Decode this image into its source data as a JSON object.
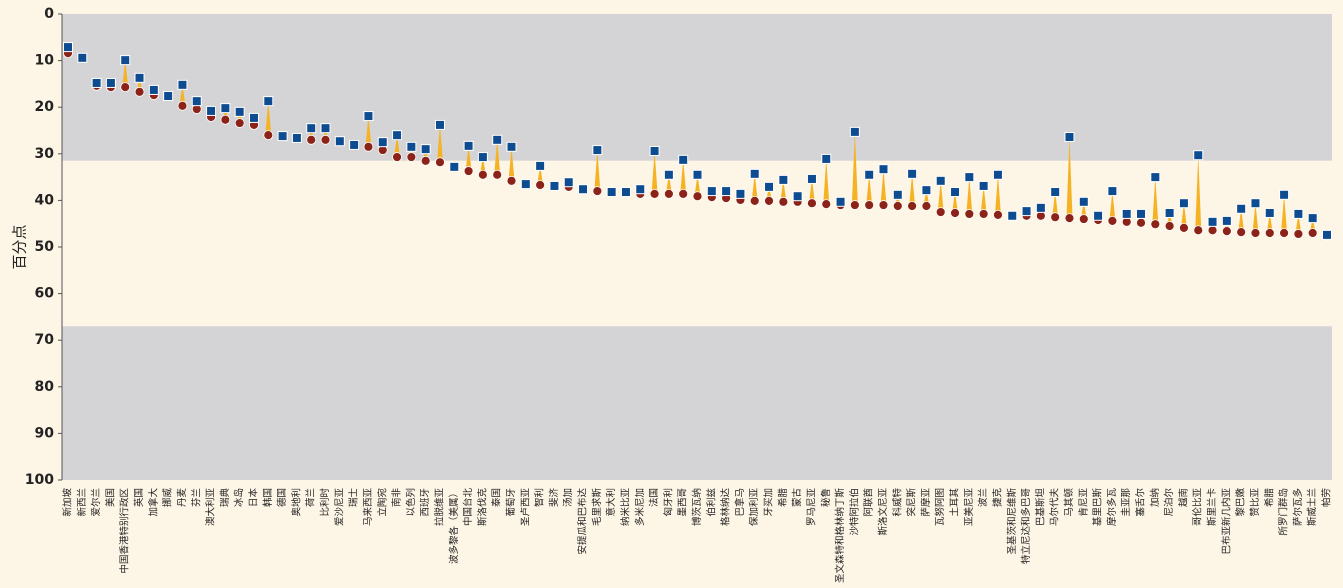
{
  "chart_data": {
    "type": "arrow-dot",
    "y_axis_label": "百分点",
    "ylim": [
      0,
      100
    ],
    "y_inverted": true,
    "yticks": [
      0,
      10,
      20,
      30,
      40,
      50,
      60,
      70,
      80,
      90,
      100
    ],
    "bands": [
      {
        "from": 0,
        "to": 31.5,
        "color": "#d4d4d6"
      },
      {
        "from": 31.5,
        "to": 67,
        "color": "#fdf5e6"
      },
      {
        "from": 67,
        "to": 100,
        "color": "#d4d4d6"
      }
    ],
    "arrow_color": "#f5b324",
    "categories": [
      "新加坡",
      "新西兰",
      "爱尔兰",
      "美国",
      "中国香港特别行政区",
      "英国",
      "加拿大",
      "挪威",
      "丹麦",
      "芬兰",
      "澳大利亚",
      "瑞典",
      "冰岛",
      "日本",
      "韩国",
      "德国",
      "奥地利",
      "荷兰",
      "比利时",
      "爱沙尼亚",
      "瑞士",
      "马来西亚",
      "立陶宛",
      "南非",
      "以色列",
      "西班牙",
      "拉脱维亚",
      "波多黎各（美属）",
      "中国台北",
      "斯洛伐克",
      "泰国",
      "葡萄牙",
      "圣卢西亚",
      "智利",
      "斐济",
      "汤加",
      "安提瓜和巴布达",
      "毛里求斯",
      "意大利",
      "纳米比亚",
      "多米尼加",
      "法国",
      "匈牙利",
      "墨西哥",
      "博茨瓦纳",
      "伯利兹",
      "格林纳达",
      "巴拿马",
      "保加利亚",
      "牙买加",
      "希腊",
      "蒙古",
      "罗马尼亚",
      "秘鲁",
      "圣文森特和格林纳丁斯",
      "沙特阿拉伯",
      "阿联酋",
      "斯洛文尼亚",
      "科威特",
      "突尼斯",
      "萨摩亚",
      "瓦努阿图",
      "土耳其",
      "亚美尼亚",
      "波兰",
      "捷克",
      "圣基茨和尼维斯",
      "特立尼达和多巴哥",
      "巴基斯坦",
      "马尔代夫",
      "马其顿",
      "肯尼亚",
      "基里巴斯",
      "摩尔多瓦",
      "圭亚那",
      "塞舌尔",
      "加纳",
      "尼泊尔",
      "越南",
      "哥伦比亚",
      "斯里兰卡",
      "巴布亚新几内亚",
      "黎巴嫩",
      "赞比亚",
      "希腊",
      "所罗门群岛",
      "萨尔瓦多",
      "斯威士兰",
      "帕劳"
    ],
    "series": [
      {
        "marker": "circle",
        "color": "#8b2318",
        "values": [
          8.4,
          9.4,
          15.4,
          15.7,
          15.7,
          16.7,
          17.4,
          17.6,
          19.7,
          20.4,
          22.1,
          22.7,
          23.4,
          23.8,
          26.0,
          26.2,
          26.6,
          27.0,
          27.0,
          27.3,
          28.1,
          28.5,
          29.2,
          30.7,
          30.7,
          31.5,
          31.8,
          32.8,
          33.7,
          34.5,
          34.5,
          35.8,
          36.5,
          36.7,
          36.9,
          37.1,
          37.6,
          38.0,
          38.2,
          38.2,
          38.6,
          38.6,
          38.6,
          38.6,
          39.1,
          39.3,
          39.5,
          39.9,
          40.1,
          40.1,
          40.3,
          40.3,
          40.6,
          40.8,
          41.0,
          41.0,
          41.0,
          41.0,
          41.2,
          41.2,
          41.2,
          42.5,
          42.7,
          42.9,
          42.9,
          43.1,
          43.3,
          43.3,
          43.3,
          43.6,
          43.8,
          44.0,
          44.2,
          44.4,
          44.6,
          44.8,
          45.1,
          45.5,
          45.9,
          46.4,
          46.4,
          46.6,
          46.8,
          47.0,
          47.0,
          47.0,
          47.2,
          47.0,
          47.6
        ]
      },
      {
        "marker": "square",
        "color": "#0e4c92",
        "values": [
          7.1,
          9.4,
          14.8,
          14.8,
          9.9,
          13.7,
          16.3,
          17.6,
          15.2,
          18.7,
          20.8,
          20.2,
          21.0,
          22.3,
          18.7,
          26.2,
          26.6,
          24.5,
          24.5,
          27.3,
          28.1,
          21.9,
          27.5,
          26.0,
          28.5,
          29.0,
          23.8,
          32.8,
          28.3,
          30.7,
          27.0,
          28.5,
          36.5,
          32.6,
          36.9,
          36.1,
          37.6,
          29.2,
          38.2,
          38.2,
          37.6,
          29.4,
          34.5,
          31.3,
          34.5,
          38.0,
          38.0,
          38.6,
          34.3,
          37.1,
          35.6,
          39.1,
          35.4,
          31.1,
          40.3,
          25.3,
          34.5,
          33.3,
          38.8,
          34.3,
          37.8,
          35.8,
          38.2,
          35.0,
          36.9,
          34.5,
          43.3,
          42.3,
          41.6,
          38.2,
          26.4,
          40.3,
          43.3,
          38.0,
          42.9,
          42.9,
          35.0,
          42.7,
          40.6,
          30.3,
          44.6,
          44.4,
          41.8,
          40.6,
          42.7,
          38.8,
          42.9,
          43.8,
          47.4
        ]
      }
    ]
  }
}
